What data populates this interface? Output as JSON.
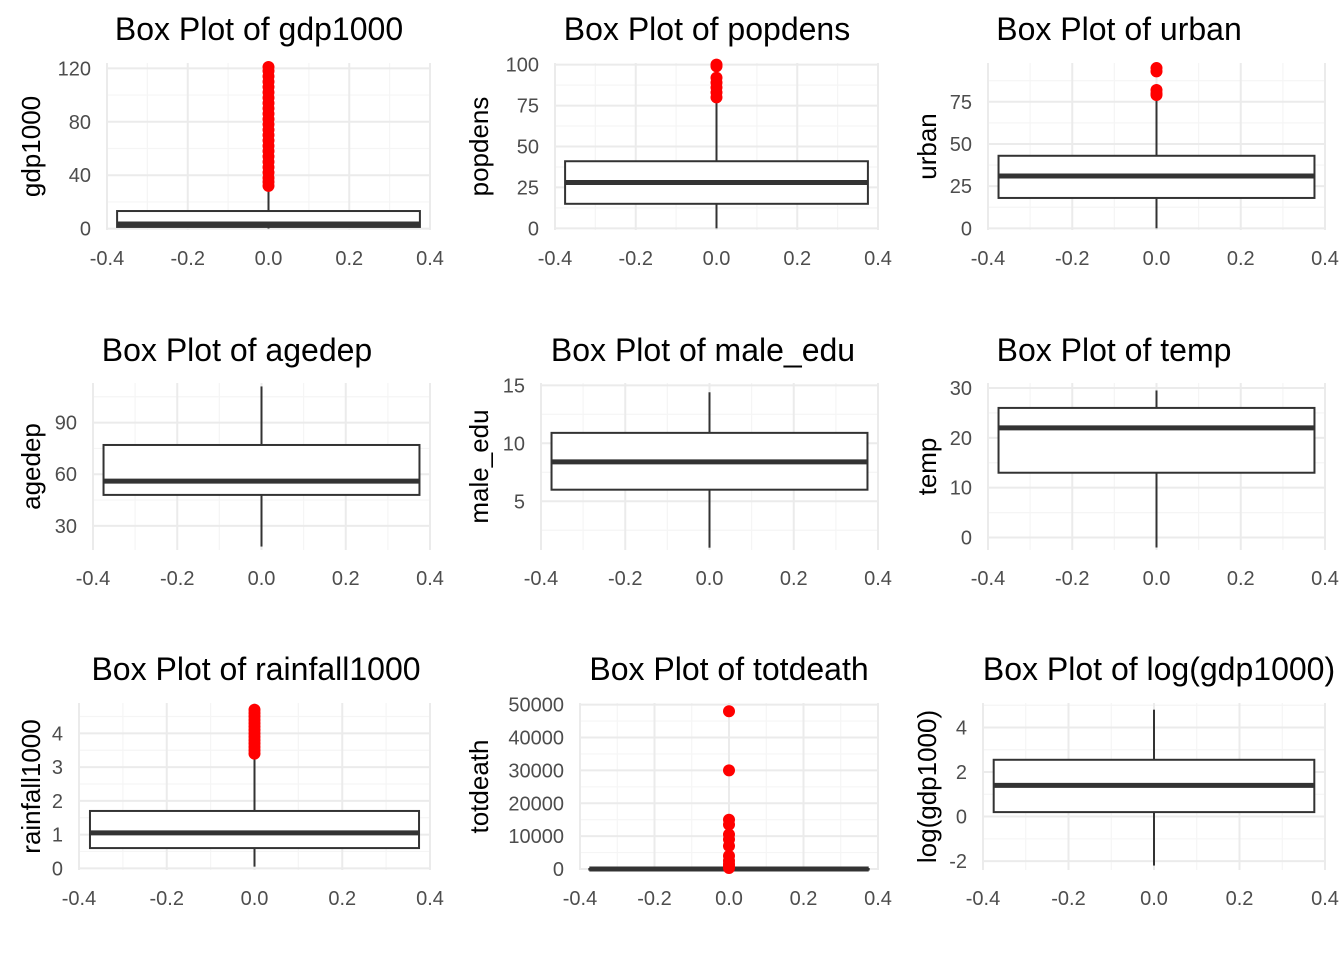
{
  "chart_data": [
    {
      "type": "boxplot",
      "title": "Box Plot of gdp1000",
      "xlabel": "",
      "ylabel": "gdp1000",
      "xlim": [
        -0.4,
        0.4
      ],
      "ylim": [
        -1,
        124
      ],
      "x_ticks": [
        "-0.4",
        "-0.2",
        "0.0",
        "0.2",
        "0.4"
      ],
      "y_ticks": [
        {
          "value": 0,
          "label": "0"
        },
        {
          "value": 40,
          "label": "40"
        },
        {
          "value": 80,
          "label": "80"
        },
        {
          "value": 120,
          "label": "120"
        }
      ],
      "box": {
        "whisker_low": 0.1,
        "q1": 1.3,
        "median": 3.5,
        "q3": 13.2,
        "whisker_high": 31
      },
      "outliers": [
        32,
        35,
        38,
        42,
        46,
        50,
        54,
        58,
        62,
        66,
        70,
        74,
        78,
        82,
        86,
        90,
        94,
        98,
        102,
        106,
        110,
        114,
        118,
        121
      ],
      "grid": true
    },
    {
      "type": "boxplot",
      "title": "Box Plot of popdens",
      "xlabel": "",
      "ylabel": "popdens",
      "xlim": [
        -0.4,
        0.4
      ],
      "ylim": [
        -1,
        101
      ],
      "x_ticks": [
        "-0.4",
        "-0.2",
        "0.0",
        "0.2",
        "0.4"
      ],
      "y_ticks": [
        {
          "value": 0,
          "label": "0"
        },
        {
          "value": 25,
          "label": "25"
        },
        {
          "value": 50,
          "label": "50"
        },
        {
          "value": 75,
          "label": "75"
        },
        {
          "value": 100,
          "label": "100"
        }
      ],
      "box": {
        "whisker_low": 0,
        "q1": 15,
        "median": 28,
        "q3": 41,
        "whisker_high": 79
      },
      "outliers": [
        80,
        83,
        86,
        89,
        92,
        99,
        100
      ],
      "grid": true
    },
    {
      "type": "boxplot",
      "title": "Box Plot of urban",
      "xlabel": "",
      "ylabel": "urban",
      "xlim": [
        -0.4,
        0.4
      ],
      "ylim": [
        -1,
        98
      ],
      "x_ticks": [
        "-0.4",
        "-0.2",
        "0.0",
        "0.2",
        "0.4"
      ],
      "y_ticks": [
        {
          "value": 0,
          "label": "0"
        },
        {
          "value": 25,
          "label": "25"
        },
        {
          "value": 50,
          "label": "50"
        },
        {
          "value": 75,
          "label": "75"
        }
      ],
      "box": {
        "whisker_low": 0,
        "q1": 18,
        "median": 31,
        "q3": 43,
        "whisker_high": 78
      },
      "outliers": [
        79,
        80,
        82,
        93,
        95
      ],
      "grid": true
    },
    {
      "type": "boxplot",
      "title": "Box Plot of agedep",
      "xlabel": "",
      "ylabel": "agedep",
      "xlim": [
        -0.4,
        0.4
      ],
      "ylim": [
        16,
        113
      ],
      "x_ticks": [
        "-0.4",
        "-0.2",
        "0.0",
        "0.2",
        "0.4"
      ],
      "y_ticks": [
        {
          "value": 30,
          "label": "30"
        },
        {
          "value": 60,
          "label": "60"
        },
        {
          "value": 90,
          "label": "90"
        }
      ],
      "box": {
        "whisker_low": 18,
        "q1": 48,
        "median": 56,
        "q3": 77,
        "whisker_high": 111
      },
      "outliers": [],
      "grid": true
    },
    {
      "type": "boxplot",
      "title": "Box Plot of male_edu",
      "xlabel": "",
      "ylabel": "male_edu",
      "xlim": [
        -0.4,
        0.4
      ],
      "ylim": [
        0.8,
        15.2
      ],
      "x_ticks": [
        "-0.4",
        "-0.2",
        "0.0",
        "0.2",
        "0.4"
      ],
      "y_ticks": [
        {
          "value": 5,
          "label": "5"
        },
        {
          "value": 10,
          "label": "10"
        },
        {
          "value": 15,
          "label": "15"
        }
      ],
      "box": {
        "whisker_low": 1.0,
        "q1": 6.0,
        "median": 8.4,
        "q3": 10.9,
        "whisker_high": 14.4
      },
      "outliers": [],
      "grid": true
    },
    {
      "type": "boxplot",
      "title": "Box Plot of temp",
      "xlabel": "",
      "ylabel": "temp",
      "xlim": [
        -0.4,
        0.4
      ],
      "ylim": [
        -2.5,
        31
      ],
      "x_ticks": [
        "-0.4",
        "-0.2",
        "0.0",
        "0.2",
        "0.4"
      ],
      "y_ticks": [
        {
          "value": 0,
          "label": "0"
        },
        {
          "value": 10,
          "label": "10"
        },
        {
          "value": 20,
          "label": "20"
        },
        {
          "value": 30,
          "label": "30"
        }
      ],
      "box": {
        "whisker_low": -2.0,
        "q1": 13,
        "median": 22,
        "q3": 26,
        "whisker_high": 29.5
      },
      "outliers": [],
      "grid": true
    },
    {
      "type": "boxplot",
      "title": "Box Plot of rainfall1000",
      "xlabel": "",
      "ylabel": "rainfall1000",
      "xlim": [
        -0.4,
        0.4
      ],
      "ylim": [
        -0.05,
        4.9
      ],
      "x_ticks": [
        "-0.4",
        "-0.2",
        "0.0",
        "0.2",
        "0.4"
      ],
      "y_ticks": [
        {
          "value": 0,
          "label": "0"
        },
        {
          "value": 1,
          "label": "1"
        },
        {
          "value": 2,
          "label": "2"
        },
        {
          "value": 3,
          "label": "3"
        },
        {
          "value": 4,
          "label": "4"
        }
      ],
      "box": {
        "whisker_low": 0.05,
        "q1": 0.6,
        "median": 1.05,
        "q3": 1.7,
        "whisker_high": 3.3
      },
      "outliers": [
        3.4,
        3.5,
        3.6,
        3.7,
        3.8,
        3.9,
        4.0,
        4.1,
        4.2,
        4.3,
        4.4,
        4.5,
        4.6,
        4.7
      ],
      "grid": true
    },
    {
      "type": "boxplot",
      "title": "Box Plot of totdeath",
      "xlabel": "",
      "ylabel": "totdeath",
      "xlim": [
        -0.4,
        0.4
      ],
      "ylim": [
        -300,
        50500
      ],
      "x_ticks": [
        "-0.4",
        "-0.2",
        "0.0",
        "0.2",
        "0.4"
      ],
      "y_ticks": [
        {
          "value": 0,
          "label": "0"
        },
        {
          "value": 10000,
          "label": "10000"
        },
        {
          "value": 20000,
          "label": "20000"
        },
        {
          "value": 30000,
          "label": "30000"
        },
        {
          "value": 40000,
          "label": "40000"
        },
        {
          "value": 50000,
          "label": "50000"
        }
      ],
      "box": {
        "whisker_low": 0,
        "q1": 0,
        "median": 0,
        "q3": 0,
        "whisker_high": 0
      },
      "outliers": [
        300,
        800,
        1500,
        2500,
        4000,
        7000,
        9000,
        10500,
        13500,
        15000,
        30000,
        48000
      ],
      "grid": true
    },
    {
      "type": "boxplot",
      "title": "Box Plot of log(gdp1000)",
      "xlabel": "",
      "ylabel": "log(gdp1000)",
      "xlim": [
        -0.4,
        0.4
      ],
      "ylim": [
        -2.4,
        5.1
      ],
      "x_ticks": [
        "-0.4",
        "-0.2",
        "0.0",
        "0.2",
        "0.4"
      ],
      "y_ticks": [
        {
          "value": -2,
          "label": "-2"
        },
        {
          "value": 0,
          "label": "0"
        },
        {
          "value": 2,
          "label": "2"
        },
        {
          "value": 4,
          "label": "4"
        }
      ],
      "box": {
        "whisker_low": -2.2,
        "q1": 0.2,
        "median": 1.4,
        "q3": 2.55,
        "whisker_high": 4.8
      },
      "outliers": [],
      "grid": true
    }
  ],
  "colors": {
    "outlier": "#ff0000",
    "box_line": "#333333",
    "grid_major": "#ebebeb",
    "grid_minor": "#f5f5f5",
    "tick_text": "#4d4d4d",
    "background": "#ffffff"
  }
}
